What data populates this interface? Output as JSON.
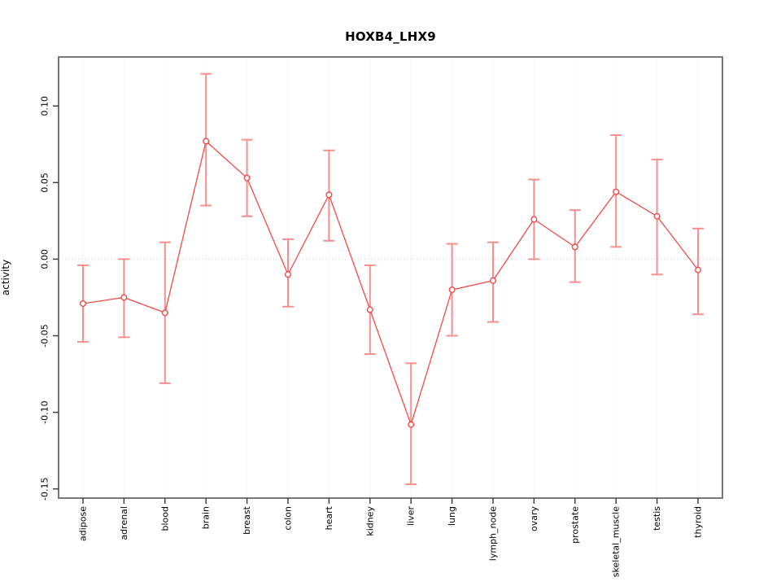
{
  "chart_data": {
    "type": "line",
    "title": "HOXB4_LHX9",
    "xlabel": "",
    "ylabel": "activity",
    "legend": "none",
    "grid": "vertical dotted gridlines at each category; dotted horizontal line at y=0",
    "categories": [
      "adipose",
      "adrenal",
      "blood",
      "brain",
      "breast",
      "colon",
      "heart",
      "kidney",
      "liver",
      "lung",
      "lymph_node",
      "ovary",
      "prostate",
      "skeletal_muscle",
      "testis",
      "thyroid"
    ],
    "series": [
      {
        "name": "activity",
        "values": [
          -0.029,
          -0.025,
          -0.035,
          0.077,
          0.053,
          -0.01,
          0.042,
          -0.033,
          -0.108,
          -0.02,
          -0.014,
          0.026,
          0.008,
          0.044,
          0.028,
          -0.007
        ],
        "lower": [
          -0.054,
          -0.051,
          -0.081,
          0.035,
          0.028,
          -0.031,
          0.012,
          -0.062,
          -0.147,
          -0.05,
          -0.041,
          0.0,
          -0.015,
          0.008,
          -0.01,
          -0.036
        ],
        "upper": [
          -0.004,
          0.0,
          0.011,
          0.121,
          0.078,
          0.013,
          0.071,
          -0.004,
          -0.068,
          0.01,
          0.011,
          0.052,
          0.032,
          0.081,
          0.065,
          0.02
        ]
      }
    ],
    "yticks": [
      -0.15,
      -0.1,
      -0.05,
      0.0,
      0.05,
      0.1
    ],
    "ytick_labels": [
      "-0.15",
      "-0.10",
      "-0.05",
      "0.00",
      "0.05",
      "0.10"
    ],
    "ylim": [
      -0.156,
      0.132
    ],
    "marker": "open-circle",
    "colors": {
      "line": "#f04b4b",
      "point": "#f04b4b",
      "errorbar": "#f78f8f",
      "gridline": "#dcdcdc",
      "zeroline": "#cfcfcf",
      "frame": "#787878",
      "tick": "#404040",
      "text": "#000000",
      "background": "#ffffff"
    }
  }
}
